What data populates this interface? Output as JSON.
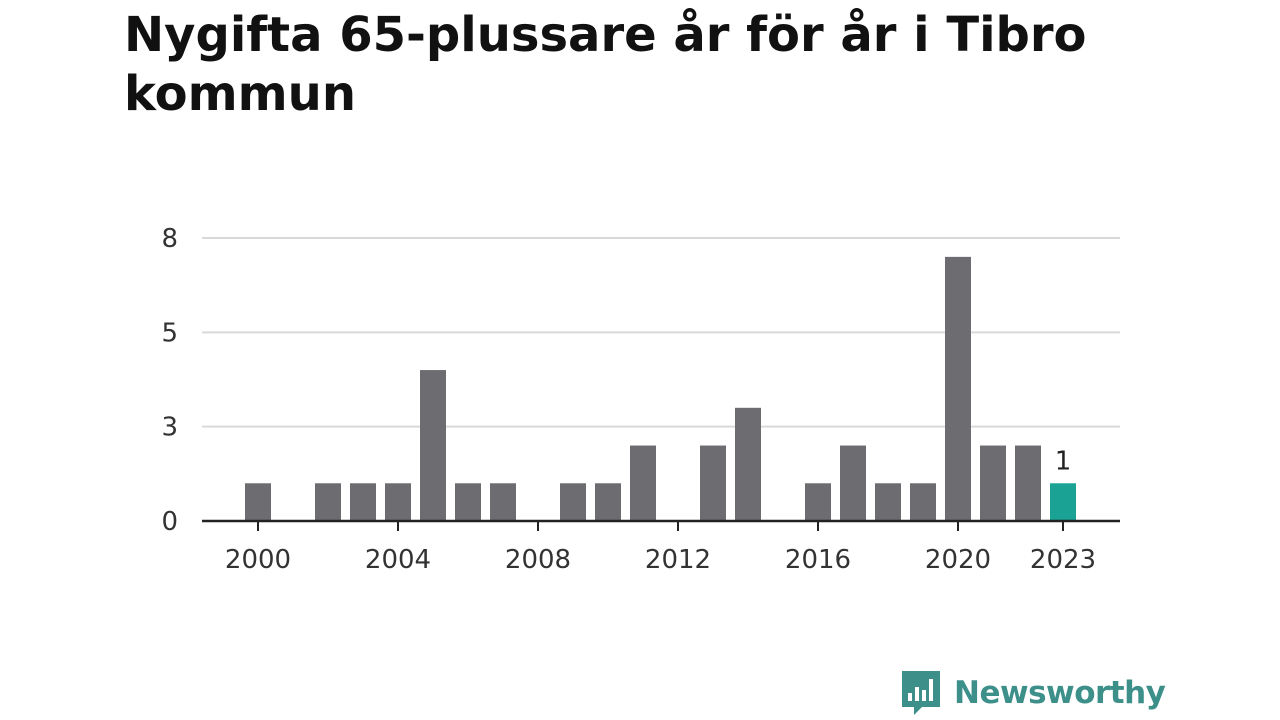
{
  "header": {
    "title": "Nygifta 65-plussare år för år i Tibro kommun"
  },
  "brand": {
    "name": "Newsworthy",
    "logo_icon": "bar-chart-speech-bubble-icon",
    "color": "#3d8f8a"
  },
  "colors": {
    "bar": "#6d6c71",
    "highlight": "#1aa395",
    "grid": "#d9d9d9",
    "axis": "#222222"
  },
  "chart_data": {
    "type": "bar",
    "title": "Nygifta 65-plussare år för år i Tibro kommun",
    "xlabel": "",
    "ylabel": "",
    "x": [
      2000,
      2001,
      2002,
      2003,
      2004,
      2005,
      2006,
      2007,
      2008,
      2009,
      2010,
      2011,
      2012,
      2013,
      2014,
      2015,
      2016,
      2017,
      2018,
      2019,
      2020,
      2021,
      2022,
      2023
    ],
    "values": [
      1,
      0,
      1,
      1,
      1,
      4,
      1,
      1,
      0,
      1,
      1,
      2,
      0,
      2,
      3,
      0,
      1,
      2,
      1,
      1,
      7,
      2,
      2,
      1
    ],
    "highlight_index": 23,
    "highlight_label": "1",
    "ylim": [
      0,
      7.5
    ],
    "yticks": [
      0,
      2.5,
      5,
      7.5
    ],
    "ytick_labels": [
      "0",
      "3",
      "5",
      "8"
    ],
    "xticks": [
      2000,
      2004,
      2008,
      2012,
      2016,
      2020,
      2023
    ],
    "xtick_labels": [
      "2000",
      "2004",
      "2008",
      "2012",
      "2016",
      "2020",
      "2023"
    ],
    "grid": true,
    "legend": "none"
  }
}
